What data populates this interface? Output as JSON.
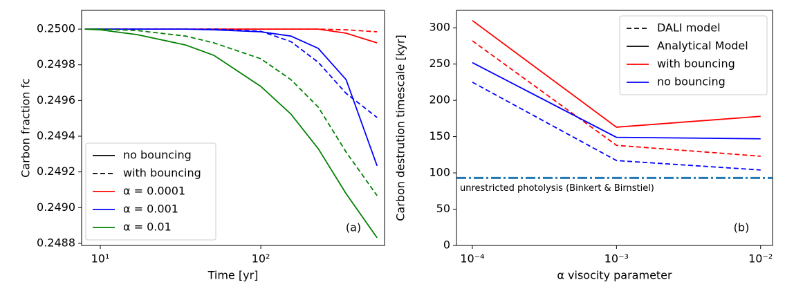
{
  "chart_data": [
    {
      "type": "line",
      "xscale": "log",
      "xlabel": "Time [yr]",
      "ylabel": "Carbon fraction fc",
      "xlim": [
        7.65,
        590
      ],
      "ylim": [
        0.248788,
        0.250105
      ],
      "xticks": [
        {
          "value": 10,
          "label": "10¹"
        },
        {
          "value": 100,
          "label": "10²"
        }
      ],
      "yticks": [
        {
          "value": 0.2488,
          "label": "0.2488"
        },
        {
          "value": 0.249,
          "label": "0.2490"
        },
        {
          "value": 0.2492,
          "label": "0.2492"
        },
        {
          "value": 0.2494,
          "label": "0.2494"
        },
        {
          "value": 0.2496,
          "label": "0.2496"
        },
        {
          "value": 0.2498,
          "label": "0.2498"
        },
        {
          "value": 0.25,
          "label": "0.2500"
        }
      ],
      "x": [
        8,
        10,
        17,
        34,
        51,
        100,
        154,
        228,
        340,
        530
      ],
      "series": [
        {
          "color": "#ff0000",
          "dash": "solid",
          "values": [
            0.25,
            0.25,
            0.25,
            0.25,
            0.25,
            0.25,
            0.25,
            0.25,
            0.249977,
            0.249923
          ]
        },
        {
          "color": "#ff0000",
          "dash": "dashed",
          "values": [
            0.25,
            0.25,
            0.25,
            0.25,
            0.25,
            0.25,
            0.25,
            0.25,
            0.249996,
            0.249985
          ]
        },
        {
          "color": "#0000ff",
          "dash": "solid",
          "values": [
            0.25,
            0.25,
            0.25,
            0.25,
            0.249996,
            0.249985,
            0.249961,
            0.249892,
            0.249717,
            0.249234
          ]
        },
        {
          "color": "#0000ff",
          "dash": "dashed",
          "values": [
            0.25,
            0.25,
            0.25,
            0.25,
            0.25,
            0.249988,
            0.24993,
            0.249814,
            0.24964,
            0.249505
          ]
        },
        {
          "color": "#008000",
          "dash": "solid",
          "values": [
            0.25,
            0.249996,
            0.249969,
            0.249911,
            0.249853,
            0.249679,
            0.249524,
            0.24933,
            0.249078,
            0.248831
          ]
        },
        {
          "color": "#008000",
          "dash": "dashed",
          "values": [
            0.25,
            0.25,
            0.249992,
            0.249961,
            0.249923,
            0.249834,
            0.249717,
            0.249563,
            0.249311,
            0.249067
          ]
        }
      ],
      "legend_position": "lower left",
      "legend": [
        {
          "label": "no bouncing",
          "color": "#000000",
          "dash": "solid"
        },
        {
          "label": "with bouncing",
          "color": "#000000",
          "dash": "dashed"
        },
        {
          "label": "α = 0.0001",
          "color": "#ff0000",
          "dash": "solid"
        },
        {
          "label": "α = 0.001",
          "color": "#0000ff",
          "dash": "solid"
        },
        {
          "label": "α = 0.01",
          "color": "#008000",
          "dash": "solid"
        }
      ],
      "panel_label": "(a)"
    },
    {
      "type": "line",
      "xscale": "log",
      "xlabel": "α visocity parameter",
      "ylabel": "Carbon destrution timescale [kyr]",
      "xlim": [
        7.76e-05,
        0.0121
      ],
      "ylim": [
        0,
        324
      ],
      "xticks": [
        {
          "value": 0.0001,
          "label": "10⁻⁴"
        },
        {
          "value": 0.001,
          "label": "10⁻³"
        },
        {
          "value": 0.01,
          "label": "10⁻²"
        }
      ],
      "yticks": [
        0,
        50,
        100,
        150,
        200,
        250,
        300
      ],
      "x": [
        0.0001,
        0.001,
        0.01
      ],
      "series": [
        {
          "color": "#ff0000",
          "dash": "solid",
          "values": [
            310,
            163,
            178
          ]
        },
        {
          "color": "#ff0000",
          "dash": "dashed",
          "values": [
            282,
            138,
            123
          ]
        },
        {
          "color": "#0000ff",
          "dash": "solid",
          "values": [
            252,
            149,
            147
          ]
        },
        {
          "color": "#0000ff",
          "dash": "dashed",
          "values": [
            225,
            117,
            104
          ]
        }
      ],
      "hline": {
        "value": 93,
        "color": "#1f77b4",
        "dash": "dashdot",
        "label": "unrestricted photolysis (Binkert & Birnstiel)"
      },
      "legend_position": "upper right",
      "legend": [
        {
          "label": "DALI model",
          "color": "#000000",
          "dash": "dashed"
        },
        {
          "label": "Analytical Model",
          "color": "#000000",
          "dash": "solid"
        },
        {
          "label": "with bouncing",
          "color": "#ff0000",
          "dash": "solid"
        },
        {
          "label": "no bouncing",
          "color": "#0000ff",
          "dash": "solid"
        }
      ],
      "panel_label": "(b)"
    }
  ]
}
